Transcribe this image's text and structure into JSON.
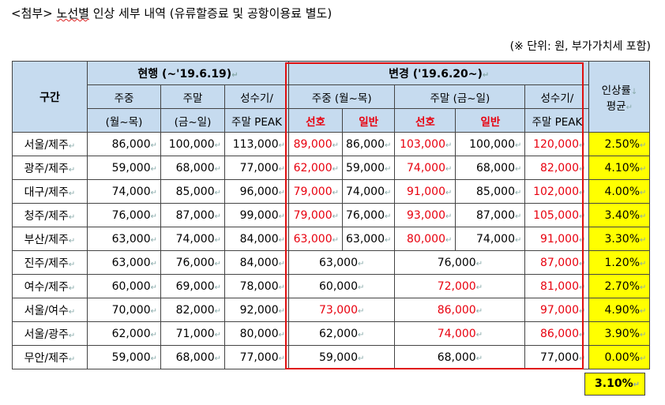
{
  "title_prefix": "<첨부> ",
  "title_underlined": "노선별",
  "title_rest": " 인상 세부 내역 (유류할증료 및 공항이용료 별도)",
  "unit_note": "(※ 단위: 원, 부가가치세 포함)",
  "headers": {
    "route": "구간",
    "current": "현행 (~'19.6.19)",
    "changed": "변경 ('19.6.20~)",
    "avg_rate_line1": "인상률",
    "avg_rate_line2": "평균",
    "weekday": "주중",
    "weekday_range": "(월~목)",
    "weekend": "주말",
    "weekend_range": "(금~일)",
    "peak_line1": "성수기/",
    "peak_line2": "주말 PEAK",
    "new_weekday": "주중 (월~목)",
    "new_weekend": "주말 (금~일)",
    "preferred": "선호",
    "general": "일반"
  },
  "rows": [
    {
      "route": "서울/제주",
      "cur_wd": "86,000",
      "cur_we": "100,000",
      "cur_peak": "113,000",
      "new_wd_pref": "89,000",
      "new_wd_gen": "86,000",
      "new_we_pref": "103,000",
      "new_we_gen": "100,000",
      "new_peak": "120,000",
      "rate": "2.50%"
    },
    {
      "route": "광주/제주",
      "cur_wd": "59,000",
      "cur_we": "68,000",
      "cur_peak": "77,000",
      "new_wd_pref": "62,000",
      "new_wd_gen": "59,000",
      "new_we_pref": "74,000",
      "new_we_gen": "68,000",
      "new_peak": "82,000",
      "rate": "4.10%"
    },
    {
      "route": "대구/제주",
      "cur_wd": "74,000",
      "cur_we": "85,000",
      "cur_peak": "96,000",
      "new_wd_pref": "79,000",
      "new_wd_gen": "74,000",
      "new_we_pref": "91,000",
      "new_we_gen": "85,000",
      "new_peak": "102,000",
      "rate": "4.00%"
    },
    {
      "route": "청주/제주",
      "cur_wd": "76,000",
      "cur_we": "87,000",
      "cur_peak": "99,000",
      "new_wd_pref": "79,000",
      "new_wd_gen": "76,000",
      "new_we_pref": "93,000",
      "new_we_gen": "87,000",
      "new_peak": "105,000",
      "rate": "3.40%"
    },
    {
      "route": "부산/제주",
      "cur_wd": "63,000",
      "cur_we": "74,000",
      "cur_peak": "84,000",
      "new_wd_pref": "63,000",
      "new_wd_gen": "63,000",
      "new_we_pref": "80,000",
      "new_we_gen": "74,000",
      "new_peak": "91,000",
      "rate": "3.30%"
    },
    {
      "route": "진주/제주",
      "cur_wd": "63,000",
      "cur_we": "76,000",
      "cur_peak": "84,000",
      "new_wd": "63,000",
      "new_we": "76,000",
      "new_peak": "87,000",
      "rate": "1.20%"
    },
    {
      "route": "여수/제주",
      "cur_wd": "60,000",
      "cur_we": "69,000",
      "cur_peak": "78,000",
      "new_wd": "60,000",
      "new_we": "72,000",
      "new_peak": "81,000",
      "rate": "2.70%"
    },
    {
      "route": "서울/여수",
      "cur_wd": "70,000",
      "cur_we": "82,000",
      "cur_peak": "92,000",
      "new_wd": "73,000",
      "new_we": "86,000",
      "new_peak": "97,000",
      "rate": "4.90%"
    },
    {
      "route": "서울/광주",
      "cur_wd": "62,000",
      "cur_we": "71,000",
      "cur_peak": "80,000",
      "new_wd": "62,000",
      "new_we": "74,000",
      "new_peak": "86,000",
      "rate": "3.90%"
    },
    {
      "route": "무안/제주",
      "cur_wd": "59,000",
      "cur_we": "68,000",
      "cur_peak": "77,000",
      "new_wd": "59,000",
      "new_we": "68,000",
      "new_peak": "77,000",
      "rate": "0.00%"
    }
  ],
  "overall_avg": "3.10%"
}
